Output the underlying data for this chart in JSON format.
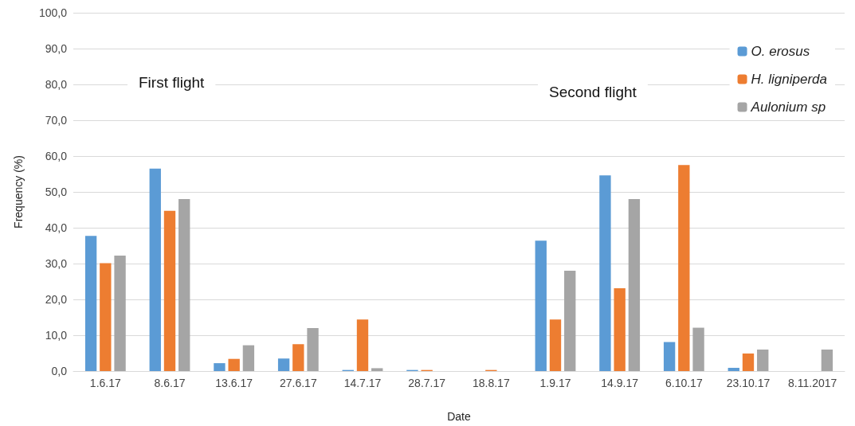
{
  "chart_data": {
    "type": "bar",
    "xlabel": "Date",
    "ylabel": "Frequency (%)",
    "categories": [
      "1.6.17",
      "8.6.17",
      "13.6.17",
      "27.6.17",
      "14.7.17",
      "28.7.17",
      "18.8.17",
      "1.9.17",
      "14.9.17",
      "6.10.17",
      "23.10.17",
      "8.11.2017"
    ],
    "series": [
      {
        "name": "O. erosus",
        "color": "#5b9bd5",
        "values": [
          37.7,
          56.5,
          2.2,
          3.5,
          0.3,
          0.3,
          0,
          36.4,
          54.6,
          8.1,
          0.9,
          0
        ]
      },
      {
        "name": "H. ligniperda",
        "color": "#ed7d31",
        "values": [
          30.1,
          44.7,
          3.4,
          7.5,
          14.4,
          0.3,
          0.3,
          14.4,
          23.1,
          57.5,
          4.9,
          0
        ]
      },
      {
        "name": "Aulonium sp",
        "color": "#a5a5a5",
        "values": [
          32.2,
          48.0,
          7.2,
          12.0,
          0.8,
          0,
          0,
          28.0,
          48.0,
          12.1,
          6.0,
          6.0
        ]
      }
    ],
    "ylim": [
      0,
      100
    ],
    "yticks": [
      {
        "value": 0,
        "label": "0,0"
      },
      {
        "value": 10,
        "label": "10,0"
      },
      {
        "value": 20,
        "label": "20,0"
      },
      {
        "value": 30,
        "label": "30,0"
      },
      {
        "value": 40,
        "label": "40,0"
      },
      {
        "value": 50,
        "label": "50,0"
      },
      {
        "value": 60,
        "label": "60,0"
      },
      {
        "value": 70,
        "label": "70,0"
      },
      {
        "value": 80,
        "label": "80,0"
      },
      {
        "value": 90,
        "label": "90,0"
      },
      {
        "value": 100,
        "label": "100,0"
      }
    ],
    "annotations": [
      "First flight",
      "Second flight"
    ],
    "grid": "y",
    "legend": "top right"
  }
}
